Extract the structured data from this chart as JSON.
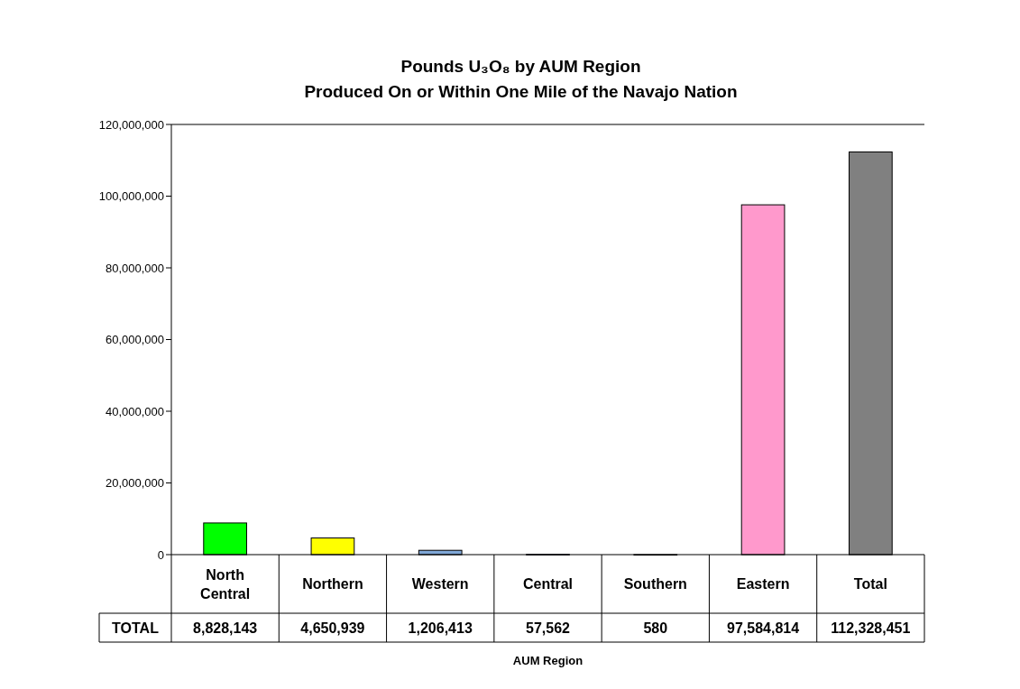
{
  "chart_data": {
    "type": "bar",
    "title": "Pounds U₃O₈ by AUM Region",
    "subtitle": "Produced On or Within One Mile of the Navajo Nation",
    "xlabel": "AUM Region",
    "categories": [
      "North Central",
      "Northern",
      "Western",
      "Central",
      "Southern",
      "Eastern",
      "Total"
    ],
    "series": [
      {
        "name": "TOTAL",
        "values": [
          8828143,
          4650939,
          1206413,
          57562,
          580,
          97584814,
          112328451
        ],
        "colors": [
          "#00ff00",
          "#ffff00",
          "#80a8d8",
          "#6666cc",
          "#c8a07a",
          "#ff99cc",
          "#808080"
        ],
        "value_labels": [
          "8,828,143",
          "4,650,939",
          "1,206,413",
          "57,562",
          "580",
          "97,584,814",
          "112,328,451"
        ]
      }
    ],
    "ylim": [
      0,
      120000000
    ],
    "yticks": [
      {
        "value": 0,
        "label": "0"
      },
      {
        "value": 20000000,
        "label": "20,000,000"
      },
      {
        "value": 40000000,
        "label": "40,000,000"
      },
      {
        "value": 60000000,
        "label": "60,000,000"
      },
      {
        "value": 80000000,
        "label": "80,000,000"
      },
      {
        "value": 100000000,
        "label": "100,000,000"
      },
      {
        "value": 120000000,
        "label": "120,000,000"
      }
    ],
    "grid": false,
    "legend": "bottom left"
  }
}
